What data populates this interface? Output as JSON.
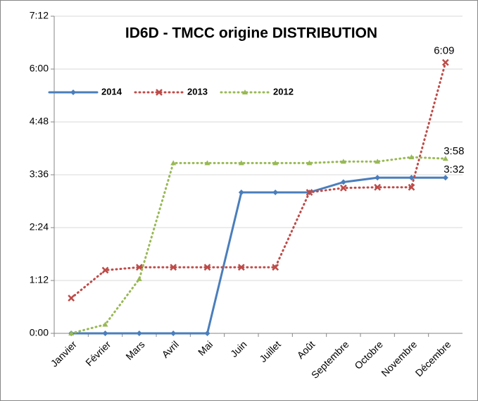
{
  "chart_data": {
    "type": "line",
    "title": "ID6D - TMCC origine DISTRIBUTION",
    "categories": [
      "Janvier",
      "Février",
      "Mars",
      "Avril",
      "Mai",
      "Juin",
      "Juillet",
      "Août",
      "Septembre",
      "Octobre",
      "Novembre",
      "Décembre"
    ],
    "series": [
      {
        "name": "2014",
        "color": "#4a7ebb",
        "dash": false,
        "marker": "diamond",
        "values": [
          0,
          0,
          0,
          0,
          0,
          192,
          192,
          192,
          206,
          212,
          212,
          212
        ],
        "value_labels": [
          null,
          null,
          null,
          null,
          null,
          null,
          null,
          null,
          null,
          null,
          null,
          "3:32"
        ]
      },
      {
        "name": "2013",
        "color": "#be4b48",
        "dash": true,
        "marker": "x",
        "values": [
          48,
          86,
          90,
          90,
          90,
          90,
          90,
          192,
          198,
          199,
          199,
          369
        ],
        "value_labels": [
          null,
          null,
          null,
          null,
          null,
          null,
          null,
          null,
          null,
          null,
          null,
          "6:09"
        ]
      },
      {
        "name": "2012",
        "color": "#98b954",
        "dash": true,
        "marker": "triangle",
        "values": [
          0,
          12,
          74,
          232,
          232,
          232,
          232,
          232,
          234,
          234,
          240,
          238
        ],
        "value_labels": [
          null,
          null,
          null,
          null,
          null,
          null,
          null,
          null,
          null,
          null,
          null,
          "3:58"
        ]
      }
    ],
    "ylim": [
      0,
      432
    ],
    "yticks": [
      {
        "value": 0,
        "label": "0:00"
      },
      {
        "value": 72,
        "label": "1:12"
      },
      {
        "value": 144,
        "label": "2:24"
      },
      {
        "value": 216,
        "label": "3:36"
      },
      {
        "value": 288,
        "label": "4:48"
      },
      {
        "value": 360,
        "label": "6:00"
      },
      {
        "value": 432,
        "label": "7:12"
      }
    ],
    "grid": true,
    "legend": "top"
  }
}
